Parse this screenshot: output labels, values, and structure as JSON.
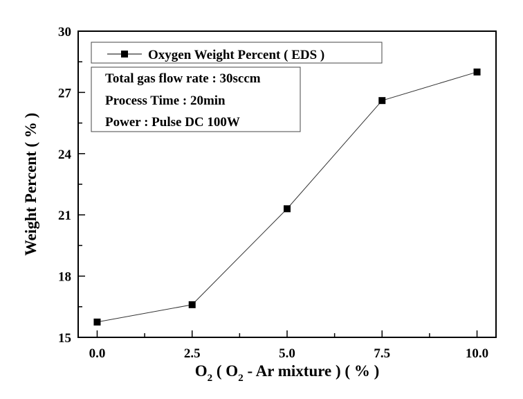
{
  "chart_data": {
    "type": "line",
    "title": "",
    "xlabel": "O2 ( O2 - Ar mixture ) ( % )",
    "xlabel_parts": {
      "o": "O",
      "sub": "2",
      "mid": " ( O",
      "rest": " - Ar mixture ) ( % )"
    },
    "ylabel": "Weight Percent ( % )",
    "xlim": [
      -0.5,
      10.5
    ],
    "ylim": [
      15,
      30
    ],
    "xticks": [
      0.0,
      2.5,
      5.0,
      7.5,
      10.0
    ],
    "xtick_labels": [
      "0.0",
      "2.5",
      "5.0",
      "7.5",
      "10.0"
    ],
    "yticks": [
      15,
      18,
      21,
      24,
      27,
      30
    ],
    "ytick_labels": [
      "15",
      "18",
      "21",
      "24",
      "27",
      "30"
    ],
    "grid": false,
    "legend_position": "top-left",
    "series": [
      {
        "name": "Oxygen Weight Percent ( EDS )",
        "marker": "square",
        "color": "#000000",
        "x": [
          0.0,
          2.5,
          5.0,
          7.5,
          10.0
        ],
        "y": [
          15.75,
          16.6,
          21.3,
          26.6,
          28.0
        ]
      }
    ],
    "annotations": [
      "Total gas flow rate : 30sccm",
      "Process Time : 20min",
      "Power : Pulse DC 100W"
    ]
  }
}
